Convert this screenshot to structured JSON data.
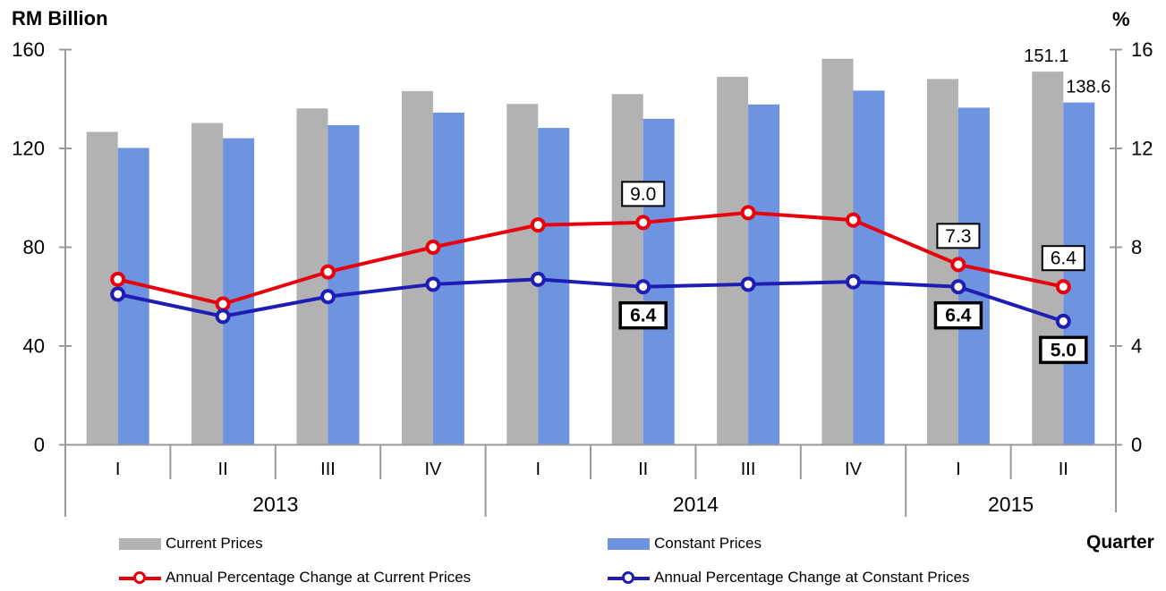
{
  "page": {
    "left_axis_title": "RM Billion",
    "right_axis_title": "%",
    "x_axis_title": "Quarter"
  },
  "chart_data": {
    "type": "bar+line",
    "categories": [
      "I",
      "II",
      "III",
      "IV",
      "I",
      "II",
      "III",
      "IV",
      "I",
      "II"
    ],
    "year_groups": [
      {
        "label": "2013",
        "quarter_count": 4
      },
      {
        "label": "2014",
        "quarter_count": 4
      },
      {
        "label": "2015",
        "quarter_count": 2
      }
    ],
    "left_axis": {
      "title": "RM Billion",
      "range": [
        0,
        160
      ],
      "ticks": [
        0,
        40,
        80,
        120,
        160
      ]
    },
    "right_axis": {
      "title": "%",
      "range": [
        0,
        16
      ],
      "ticks": [
        0,
        4,
        8,
        12,
        16
      ]
    },
    "x_axis": {
      "title": "Quarter"
    },
    "grid": "off",
    "bar_series": [
      {
        "name": "Current Prices",
        "color": "#b2b2b2",
        "values": [
          126.7,
          130.3,
          136.2,
          143.2,
          138.0,
          142.0,
          149.0,
          156.3,
          148.1,
          151.1
        ]
      },
      {
        "name": "Constant Prices",
        "color": "#6e93e0",
        "values": [
          120.2,
          124.1,
          129.4,
          134.5,
          128.3,
          132.0,
          137.8,
          143.4,
          136.5,
          138.6
        ]
      }
    ],
    "line_series": [
      {
        "name": "Annual Percentage Change at Current Prices",
        "color": "#e8000d",
        "values": [
          6.7,
          5.7,
          7.0,
          8.0,
          8.9,
          9.0,
          9.4,
          9.1,
          7.3,
          6.4
        ]
      },
      {
        "name": "Annual Percentage Change at Constant Prices",
        "color": "#1e1eb4",
        "values": [
          6.1,
          5.2,
          6.0,
          6.5,
          6.7,
          6.4,
          6.5,
          6.6,
          6.4,
          5.0
        ]
      }
    ],
    "bar_labels": [
      {
        "series": "Current Prices",
        "index": 9,
        "text": "151.1"
      },
      {
        "series": "Constant Prices",
        "index": 9,
        "text": "138.6"
      }
    ],
    "boxed_labels": [
      {
        "series": "Annual Percentage Change at Current Prices",
        "index": 5,
        "text": "9.0"
      },
      {
        "series": "Annual Percentage Change at Current Prices",
        "index": 8,
        "text": "7.3"
      },
      {
        "series": "Annual Percentage Change at Current Prices",
        "index": 9,
        "text": "6.4"
      },
      {
        "series": "Annual Percentage Change at Constant Prices",
        "index": 5,
        "text": "6.4"
      },
      {
        "series": "Annual Percentage Change at Constant Prices",
        "index": 8,
        "text": "6.4"
      },
      {
        "series": "Annual Percentage Change at Constant Prices",
        "index": 9,
        "text": "5.0"
      }
    ]
  },
  "legend": {
    "items": [
      {
        "label": "Current Prices",
        "type": "bar",
        "color": "#b2b2b2"
      },
      {
        "label": "Constant Prices",
        "type": "bar",
        "color": "#6e93e0"
      },
      {
        "label": "Annual Percentage Change at Current Prices",
        "type": "line",
        "color": "#e8000d"
      },
      {
        "label": "Annual Percentage Change at Constant Prices",
        "type": "line",
        "color": "#1e1eb4"
      }
    ]
  },
  "colors": {
    "axis": "#999999",
    "text": "#000000",
    "background": "#ffffff"
  }
}
